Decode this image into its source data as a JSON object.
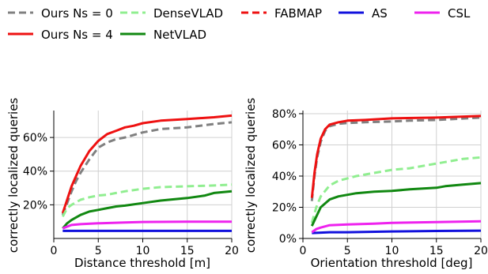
{
  "legend": {
    "placement": "top",
    "entries": [
      {
        "label": "Ours Ns = 0",
        "color": "#808080",
        "dash": "dashed"
      },
      {
        "label": "DenseVLAD",
        "color": "#90ee90",
        "dash": "dashed"
      },
      {
        "label": "FABMAP",
        "color": "#ee1111",
        "dash": "dashed"
      },
      {
        "label": "AS",
        "color": "#1111dd",
        "dash": "solid"
      },
      {
        "label": "CSL",
        "color": "#ee22ee",
        "dash": "solid"
      },
      {
        "label": "Ours Ns = 4",
        "color": "#ee1111",
        "dash": "solid"
      },
      {
        "label": "NetVLAD",
        "color": "#118811",
        "dash": "solid"
      }
    ]
  },
  "chart_data": [
    {
      "type": "line",
      "xlabel": "Distance threshold [m]",
      "ylabel": "correctly localized queries",
      "xlim": [
        0,
        20
      ],
      "ylim": [
        0,
        76
      ],
      "xticks": [
        0,
        5,
        10,
        15,
        20
      ],
      "xtick_labels": [
        "0",
        "5",
        "10",
        "15",
        "20"
      ],
      "yticks": [
        20,
        40,
        60
      ],
      "ytick_labels": [
        "20%",
        "40%",
        "60%"
      ],
      "grid": true,
      "series": [
        {
          "name": "Ours Ns = 0",
          "color": "#808080",
          "dash": "dashed",
          "x": [
            1,
            1.5,
            2,
            2.5,
            3,
            4,
            5,
            6,
            7,
            8,
            10,
            12,
            15,
            18,
            20
          ],
          "y": [
            14,
            21,
            28,
            34,
            39,
            47,
            54,
            57,
            59,
            60,
            63,
            65,
            66,
            68,
            69
          ]
        },
        {
          "name": "Ours Ns = 4",
          "color": "#ee1111",
          "dash": "solid",
          "x": [
            1,
            1.5,
            2,
            2.5,
            3,
            4,
            5,
            6,
            7,
            8,
            9,
            10,
            12,
            15,
            18,
            20
          ],
          "y": [
            15,
            23,
            31,
            37,
            43,
            52,
            58,
            62,
            64,
            66,
            67,
            68.5,
            70,
            71,
            72,
            73
          ]
        },
        {
          "name": "DenseVLAD",
          "color": "#90ee90",
          "dash": "dashed",
          "x": [
            1,
            1.5,
            2,
            3,
            4,
            5,
            6,
            7,
            8,
            10,
            12,
            15,
            18,
            20
          ],
          "y": [
            13,
            18,
            20,
            23,
            24.5,
            25.5,
            26,
            27,
            28,
            29.5,
            30.5,
            31,
            31.5,
            32
          ]
        },
        {
          "name": "NetVLAD",
          "color": "#118811",
          "dash": "solid",
          "x": [
            1,
            1.5,
            2,
            3,
            4,
            5,
            6,
            7,
            8,
            10,
            12,
            15,
            17,
            18,
            20
          ],
          "y": [
            6,
            9,
            11,
            14,
            16,
            17,
            18,
            19,
            19.5,
            21,
            22.5,
            24,
            25.5,
            27,
            28
          ]
        },
        {
          "name": "FABMAP",
          "color": "#ee1111",
          "dash": "dashed",
          "x": [],
          "y": []
        },
        {
          "name": "AS",
          "color": "#1111dd",
          "dash": "solid",
          "x": [
            1,
            20
          ],
          "y": [
            4.5,
            4.5
          ]
        },
        {
          "name": "CSL",
          "color": "#ee22ee",
          "dash": "solid",
          "x": [
            1,
            2,
            3,
            5,
            8,
            10,
            15,
            20
          ],
          "y": [
            6,
            8,
            8.5,
            9,
            9.5,
            9.8,
            10,
            10
          ]
        }
      ]
    },
    {
      "type": "line",
      "xlabel": "Orientation threshold [deg]",
      "ylabel": "correctly localized queries",
      "xlim": [
        0,
        20
      ],
      "ylim": [
        0,
        82
      ],
      "xticks": [
        0,
        5,
        10,
        15,
        20
      ],
      "xtick_labels": [
        "0",
        "5",
        "10",
        "15",
        "20"
      ],
      "yticks": [
        0,
        20,
        40,
        60,
        80
      ],
      "ytick_labels": [
        "0%",
        "20%",
        "40%",
        "60%",
        "80%"
      ],
      "grid": true,
      "series": [
        {
          "name": "Ours Ns = 0",
          "color": "#808080",
          "dash": "dashed",
          "x": [
            1,
            1.3,
            1.6,
            2,
            2.5,
            3,
            4,
            5,
            7,
            10,
            12,
            15,
            20
          ],
          "y": [
            24,
            40,
            52,
            62,
            69,
            72,
            73.5,
            74,
            74.5,
            75,
            75.5,
            76,
            77.5
          ]
        },
        {
          "name": "Ours Ns = 4",
          "color": "#ee1111",
          "dash": "solid",
          "x": [
            1,
            1.3,
            1.6,
            2,
            2.5,
            3,
            4,
            5,
            7,
            10,
            15,
            20
          ],
          "y": [
            26,
            42,
            54,
            64,
            70,
            73,
            74.5,
            75.5,
            76,
            77,
            77.5,
            78.5
          ]
        },
        {
          "name": "DenseVLAD",
          "color": "#90ee90",
          "dash": "dashed",
          "x": [
            1,
            1.5,
            2,
            3,
            4,
            5,
            6,
            8,
            10,
            12,
            14,
            16,
            18,
            20
          ],
          "y": [
            10,
            20,
            27,
            34,
            37,
            38.5,
            40,
            42,
            44,
            45,
            47,
            49,
            51,
            52
          ]
        },
        {
          "name": "NetVLAD",
          "color": "#118811",
          "dash": "solid",
          "x": [
            1,
            1.5,
            2,
            3,
            4,
            5,
            6,
            8,
            10,
            12,
            15,
            16,
            18,
            20
          ],
          "y": [
            8,
            14,
            20,
            25,
            27,
            28,
            29,
            30,
            30.5,
            31.5,
            32.5,
            33.5,
            34.5,
            35.5
          ]
        },
        {
          "name": "FABMAP",
          "color": "#ee1111",
          "dash": "dashed",
          "x": [],
          "y": []
        },
        {
          "name": "AS",
          "color": "#1111dd",
          "dash": "solid",
          "x": [
            1,
            3,
            5,
            10,
            15,
            20
          ],
          "y": [
            3.5,
            4,
            4,
            4.5,
            4.8,
            5
          ]
        },
        {
          "name": "CSL",
          "color": "#ee22ee",
          "dash": "solid",
          "x": [
            1,
            1.5,
            2,
            3,
            5,
            8,
            10,
            15,
            20
          ],
          "y": [
            4,
            6,
            7,
            8.5,
            9,
            9.5,
            10,
            10.5,
            11
          ]
        }
      ]
    }
  ]
}
